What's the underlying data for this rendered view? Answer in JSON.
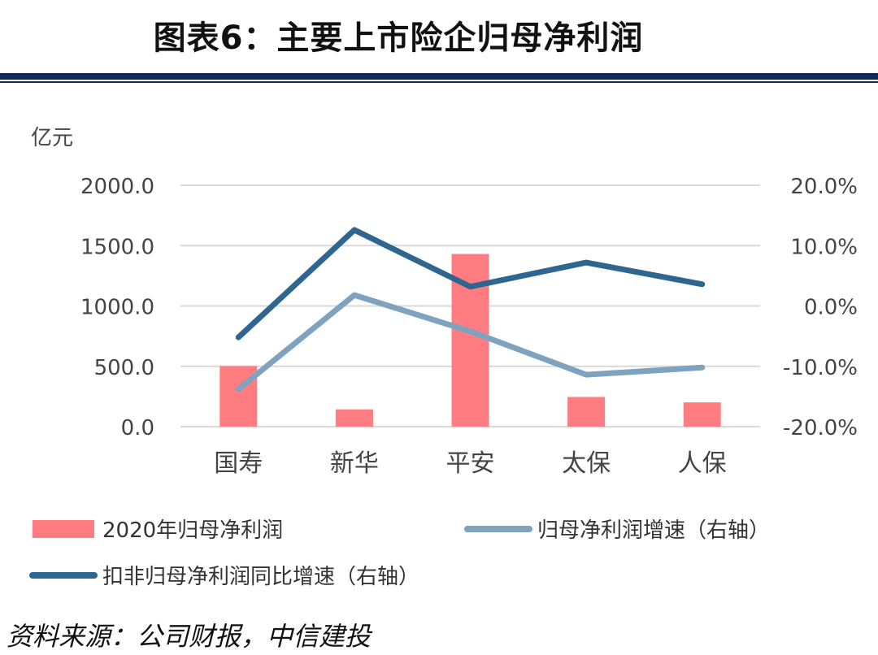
{
  "header": {
    "title": "图表6：主要上市险企归母净利润"
  },
  "source": "资料来源：公司财报，中信建投",
  "colors": {
    "bar": "#ff7c80",
    "growth": "#7fa3be",
    "core_growth": "#2e6690",
    "axis_text": "#444444",
    "grid": "#d9d9d9",
    "rule": "#0d2a5c"
  },
  "chart_data": {
    "type": "bar",
    "title": "图表6：主要上市险企归母净利润",
    "unit_label": "亿元",
    "categories": [
      "国寿",
      "新华",
      "平安",
      "太保",
      "人保"
    ],
    "left_axis": {
      "min": 0,
      "max": 2000,
      "ticks": [
        "0.0",
        "500.0",
        "1000.0",
        "1500.0",
        "2000.0"
      ],
      "tick_values": [
        0,
        500,
        1000,
        1500,
        2000
      ]
    },
    "right_axis": {
      "min": -0.2,
      "max": 0.2,
      "ticks": [
        "-20.0%",
        "-10.0%",
        "0.0%",
        "10.0%",
        "20.0%"
      ],
      "tick_values": [
        -0.2,
        -0.1,
        0,
        0.1,
        0.2
      ]
    },
    "grid": true,
    "legend_position": "bottom",
    "series": [
      {
        "name": "2020年归母净利润",
        "type": "bar",
        "axis": "left",
        "values": [
          502,
          143,
          1431,
          246,
          201
        ]
      },
      {
        "name": "归母净利润增速（右轴）",
        "type": "line",
        "axis": "right",
        "values": [
          -0.138,
          0.018,
          -0.042,
          -0.114,
          -0.102
        ]
      },
      {
        "name": "扣非归母净利润同比增速（右轴）",
        "type": "line",
        "axis": "right",
        "values": [
          -0.052,
          0.126,
          0.032,
          0.072,
          0.036
        ]
      }
    ]
  }
}
